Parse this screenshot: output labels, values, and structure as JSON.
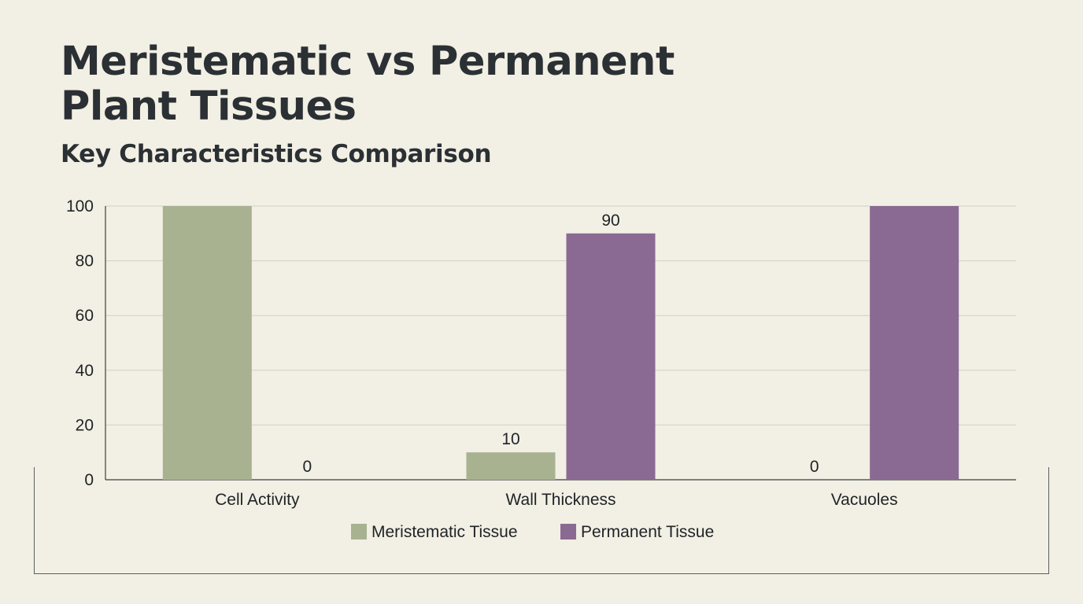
{
  "title": "Meristematic vs Permanent Plant Tissues",
  "subtitle": "Key Characteristics Comparison",
  "chart_data": {
    "type": "bar",
    "title": "Meristematic vs Permanent Plant Tissues",
    "subtitle": "Key Characteristics Comparison",
    "categories": [
      "Cell Activity",
      "Wall Thickness",
      "Vacuoles"
    ],
    "series": [
      {
        "name": "Meristematic Tissue",
        "color": "#a8b290",
        "values": [
          100,
          10,
          0
        ],
        "data_labels": [
          "",
          "10",
          "0"
        ]
      },
      {
        "name": "Permanent Tissue",
        "color": "#8a6a92",
        "values": [
          0,
          90,
          100
        ],
        "data_labels": [
          "0",
          "90",
          ""
        ]
      }
    ],
    "ylim": [
      0,
      100
    ],
    "yticks": [
      0,
      20,
      40,
      60,
      80,
      100
    ],
    "xlabel": "",
    "ylabel": "",
    "grid": true,
    "legend": "bottom-center"
  }
}
